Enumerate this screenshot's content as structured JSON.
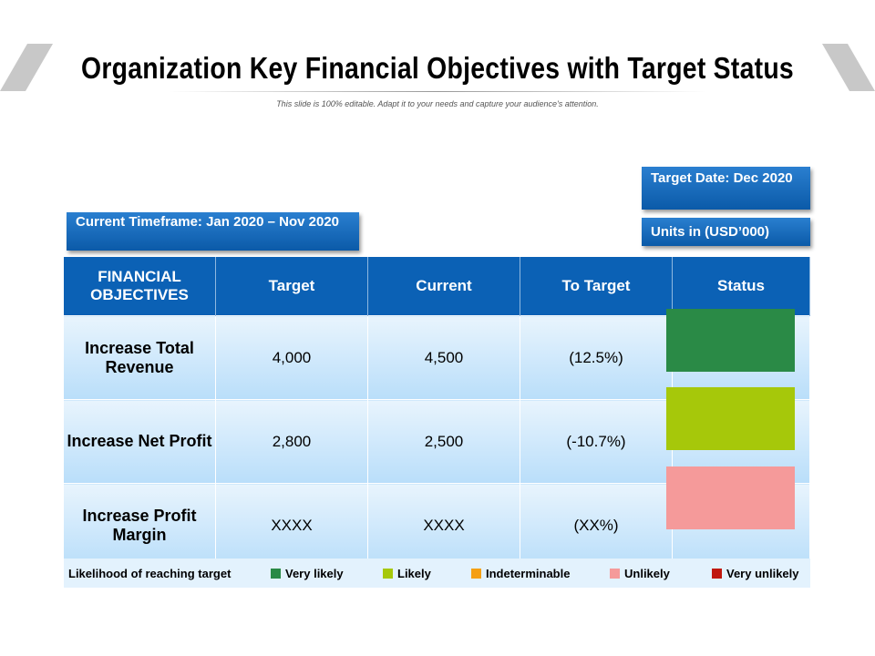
{
  "title": "Organization Key Financial Objectives with Target Status",
  "subtitle": "This slide is 100% editable. Adapt it to your needs and capture your audience's attention.",
  "current_timeframe": "Current Timeframe: Jan 2020 – Nov 2020",
  "target_date": "Target Date: Dec 2020",
  "units": "Units in (USD’000)",
  "table": {
    "headers": [
      "FINANCIAL OBJECTIVES",
      "Target",
      "Current",
      "To Target",
      "Status"
    ],
    "rows": [
      {
        "objective": "Increase Total Revenue",
        "target": "4,000",
        "current": "4,500",
        "to_target": "(12.5%)",
        "status_color": "#2a8a46"
      },
      {
        "objective": "Increase Net Profit",
        "target": "2,800",
        "current": "2,500",
        "to_target": "(-10.7%)",
        "status_color": "#a6c80a"
      },
      {
        "objective": "Increase Profit Margin",
        "target": "XXXX",
        "current": "XXXX",
        "to_target": "(XX%)",
        "status_color": "#f59a9a"
      }
    ]
  },
  "legend": {
    "label": "Likelihood of reaching target",
    "items": [
      {
        "label": "Very likely",
        "color": "#2a8a46"
      },
      {
        "label": "Likely",
        "color": "#a6c80a"
      },
      {
        "label": "Indeterminable",
        "color": "#f5a012"
      },
      {
        "label": "Unlikely",
        "color": "#f59a9a"
      },
      {
        "label": "Very unlikely",
        "color": "#c0180e"
      }
    ]
  }
}
